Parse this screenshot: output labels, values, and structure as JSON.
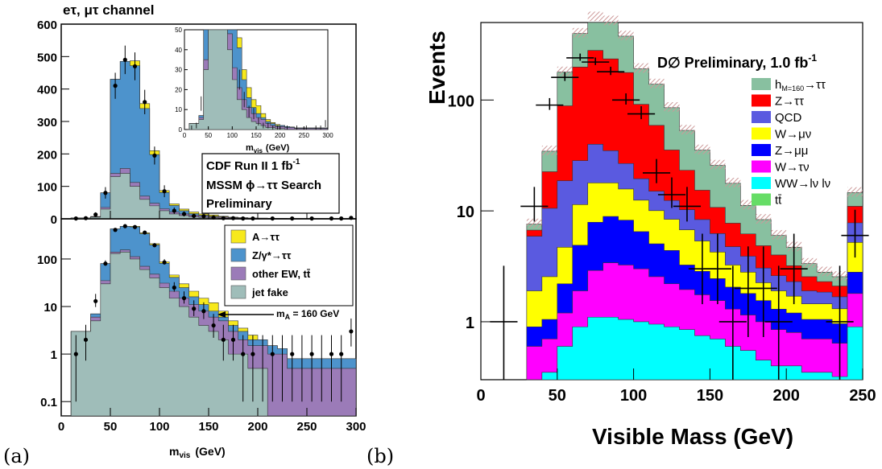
{
  "panel_a": {
    "label": "(a)",
    "title": "eτ, μτ channel",
    "xlabel": "m",
    "xlabel_sub": "vis",
    "xlabel_unit": "(GeV)",
    "info_box": [
      "CDF Run II  1 fb",
      "MSSM ϕ→ττ Search",
      "Preliminary"
    ],
    "info_box_sup": "-1",
    "arrow_label": "m",
    "arrow_label_sub": "A",
    "arrow_label_rest": " = 160 GeV",
    "inset_xlabel": "m",
    "inset_xlabel_sub": "vis",
    "inset_xlabel_unit": "(GeV)",
    "legend": [
      {
        "label": "A→ττ",
        "color": "#f7e91c"
      },
      {
        "label": "Z/γ*→ττ",
        "color": "#4d93cc"
      },
      {
        "label": "other EW, tt̄",
        "color": "#9b7bb8"
      },
      {
        "label": "jet fake",
        "color": "#9fbdb9"
      }
    ]
  },
  "panel_b": {
    "label": "(b)",
    "ylabel": "Events",
    "xlabel": "Visible Mass (GeV)",
    "title": "D∅ Preliminary, 1.0 fb",
    "title_sup": "-1",
    "legend": [
      {
        "label": "h",
        "sub": "M=160",
        "rest": "→ττ",
        "color": "#88c0a0"
      },
      {
        "label": "Z→ττ",
        "color": "#ff0000"
      },
      {
        "label": "QCD",
        "color": "#5a5ae0"
      },
      {
        "label": "W→μν",
        "color": "#ffff00"
      },
      {
        "label": "Z→μμ",
        "color": "#0000ff"
      },
      {
        "label": "W→τν",
        "color": "#ff00ff"
      },
      {
        "label": "WW→lν lν",
        "color": "#00ffff"
      },
      {
        "label": "tt̄",
        "color": "#66dd66"
      }
    ]
  },
  "chart_data": [
    {
      "type": "area",
      "panel": "a-top",
      "scale": "linear",
      "xlim": [
        0,
        300
      ],
      "ylim": [
        0,
        600
      ],
      "xticks": [
        0,
        50,
        100,
        150,
        200,
        250,
        300
      ],
      "yticks": [
        0,
        100,
        200,
        300,
        400,
        500,
        600
      ],
      "bin_edges": [
        0,
        10,
        20,
        30,
        40,
        50,
        60,
        70,
        80,
        90,
        100,
        110,
        120,
        130,
        140,
        150,
        160,
        170,
        180,
        190,
        200,
        210,
        220,
        230,
        240,
        250,
        260,
        270,
        280,
        290,
        300
      ],
      "stack_order": [
        "jet fake",
        "other EW, tt̄",
        "Z/γ*→ττ",
        "A→ττ"
      ],
      "series": [
        {
          "name": "jet fake",
          "values": [
            0,
            3,
            3,
            5,
            30,
            130,
            140,
            100,
            60,
            40,
            25,
            15,
            10,
            6,
            4,
            3,
            2,
            1,
            1,
            0.5,
            0.5,
            0,
            0,
            0,
            0,
            0,
            0,
            0,
            0,
            0
          ]
        },
        {
          "name": "other EW, tt̄",
          "values": [
            0,
            0,
            0,
            1,
            5,
            10,
            15,
            12,
            10,
            8,
            6,
            6,
            5,
            5,
            4,
            3,
            3,
            2,
            1,
            1,
            1,
            1,
            1,
            0.5,
            0.5,
            0.5,
            0.5,
            0.5,
            0.5,
            0.5
          ]
        },
        {
          "name": "Z/γ*→ττ",
          "values": [
            0,
            0,
            0,
            1,
            45,
            290,
            330,
            360,
            270,
            150,
            50,
            20,
            10,
            5,
            3,
            2,
            1,
            1,
            1,
            0.5,
            0.5,
            0.5,
            0.3,
            0.3,
            0.3,
            0.3,
            0.3,
            0.3,
            0.3,
            0.3
          ]
        },
        {
          "name": "A→ττ",
          "values": [
            0,
            0,
            0,
            0,
            0,
            0,
            0,
            15,
            15,
            12,
            6,
            5,
            5,
            5,
            4,
            4,
            2,
            1,
            0.5,
            0.5,
            0,
            0,
            0,
            0,
            0,
            0,
            0,
            0,
            0,
            0
          ]
        }
      ],
      "data_points": {
        "x": [
          15,
          25,
          35,
          45,
          55,
          65,
          75,
          85,
          95,
          105,
          115,
          125,
          135,
          145,
          155,
          165,
          175,
          185,
          195,
          205,
          215,
          225,
          235,
          245,
          255,
          265,
          275,
          285,
          295
        ],
        "y": [
          1,
          2,
          13,
          80,
          410,
          490,
          470,
          360,
          195,
          85,
          25,
          15,
          9,
          8,
          4,
          2,
          2,
          1,
          1,
          0,
          1,
          0,
          1,
          0,
          1,
          0,
          1,
          1,
          3
        ]
      }
    },
    {
      "type": "area",
      "panel": "a-inset",
      "scale": "linear",
      "xlim": [
        0,
        300
      ],
      "ylim": [
        0,
        50
      ],
      "xticks": [
        0,
        50,
        100,
        150,
        200,
        250,
        300
      ],
      "yticks": [
        0,
        10,
        20,
        30,
        40,
        50
      ]
    },
    {
      "type": "area",
      "panel": "a-bottom",
      "scale": "log",
      "xlim": [
        0,
        300
      ],
      "ylim": [
        0.05,
        700
      ],
      "xticks": [
        0,
        50,
        100,
        150,
        200,
        250,
        300
      ],
      "yticks": [
        0.1,
        1,
        10,
        100
      ],
      "annotation": "m_A = 160 GeV"
    },
    {
      "type": "area",
      "panel": "b",
      "scale": "log",
      "xlim": [
        0,
        250
      ],
      "ylim": [
        0.3,
        500
      ],
      "xticks": [
        0,
        50,
        100,
        150,
        200,
        250
      ],
      "yticks": [
        1,
        10,
        100
      ],
      "bin_edges": [
        30,
        40,
        50,
        60,
        70,
        80,
        90,
        100,
        110,
        120,
        130,
        140,
        150,
        160,
        170,
        180,
        190,
        200,
        210,
        220,
        230,
        240,
        250
      ],
      "stack_order": [
        "WW→lν lν",
        "W→τν",
        "Z→μμ",
        "W→μν",
        "QCD",
        "Z→ττ",
        "hM=160→ττ"
      ],
      "series": [
        {
          "name": "WW→lν lν",
          "values": [
            0.3,
            0.35,
            0.6,
            0.9,
            1.1,
            1.1,
            1.05,
            1.0,
            0.95,
            0.9,
            0.85,
            0.75,
            0.7,
            0.6,
            0.55,
            0.45,
            0.4,
            0.4,
            0.35,
            0.35,
            0.32,
            0.9
          ]
        },
        {
          "name": "W→τν",
          "values": [
            0.3,
            0.35,
            0.6,
            1.0,
            1.8,
            2.3,
            2.2,
            2.0,
            1.6,
            1.3,
            1.1,
            1.0,
            0.85,
            0.7,
            0.6,
            0.55,
            0.45,
            0.4,
            0.35,
            0.35,
            0.32,
            0.9
          ]
        },
        {
          "name": "Z→μμ",
          "values": [
            0.3,
            0.35,
            1.0,
            3.0,
            5.0,
            5.5,
            5.0,
            3.5,
            2.5,
            2.2,
            1.3,
            1.1,
            0.9,
            0.75,
            0.65,
            0.55,
            0.45,
            0.4,
            0.35,
            0.35,
            0.32,
            1.0
          ]
        },
        {
          "name": "W→μν",
          "values": [
            1,
            1.5,
            2.5,
            6.5,
            10,
            9,
            7.5,
            6,
            5,
            4,
            3.5,
            2.5,
            1.8,
            1.2,
            1.0,
            0.7,
            0.6,
            0.5,
            0.4,
            0.4,
            0.35,
            2.4
          ]
        },
        {
          "name": "QCD",
          "values": [
            4,
            8,
            14,
            17,
            22,
            17,
            11,
            7,
            5,
            4,
            3.5,
            3,
            2,
            1.5,
            1.1,
            0.8,
            0.7,
            0.6,
            0.45,
            0.4,
            0.37,
            2.6
          ]
        },
        {
          "name": "Z→ττ",
          "values": [
            0.8,
            12,
            70,
            170,
            240,
            200,
            150,
            72,
            44,
            23,
            13,
            7,
            4.5,
            3,
            2.3,
            1.8,
            1.4,
            0.9,
            0.65,
            0.45,
            0.42,
            3.2
          ]
        },
        {
          "name": "hM=160→ττ",
          "values": [
            0.9,
            12,
            90,
            200,
            280,
            280,
            200,
            100,
            80,
            50,
            30,
            20,
            15,
            10,
            5,
            3.5,
            2,
            1.5,
            0.8,
            0.5,
            0.45,
            3.6
          ]
        }
      ],
      "data_points": {
        "x": [
          15,
          35,
          45,
          55,
          65,
          75,
          85,
          95,
          105,
          115,
          125,
          135,
          145,
          155,
          165,
          175,
          185,
          195,
          205,
          235,
          245
        ],
        "y": [
          1,
          11,
          90,
          160,
          240,
          220,
          180,
          100,
          75,
          22,
          14,
          11,
          3,
          3,
          1,
          2,
          2,
          1,
          3,
          1,
          6
        ]
      }
    }
  ]
}
